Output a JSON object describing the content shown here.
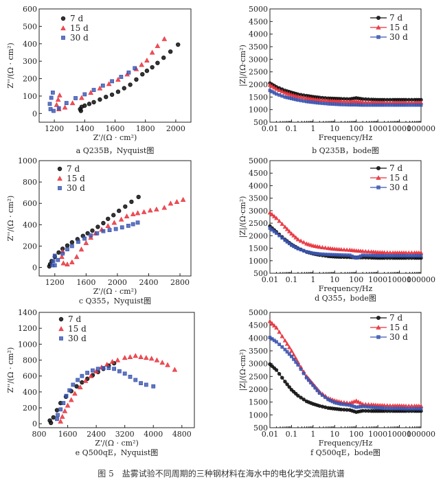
{
  "figure_caption": "图 5　盐雾试验不同周期的三种钢材料在海水中的电化学交流阻抗谱",
  "colors": {
    "7 d": "#111111",
    "15 d": "#e8323c",
    "30 d": "#3a55b0"
  },
  "markers": {
    "7 d": "circle",
    "15 d": "triangle",
    "30 d": "square"
  },
  "chart_data": [
    {
      "type": "scatter",
      "caption": "a Q235B，Nyquist图",
      "xlabel": "Z'/(Ω · cm²)",
      "ylabel": "Z''/(Ω · cm²)",
      "xscale": "linear",
      "xlim": [
        1100,
        2100
      ],
      "ylim": [
        -50,
        600
      ],
      "xticks": [
        "1200",
        "1400",
        "1600",
        "1800",
        "2000"
      ],
      "yticks": [
        "0",
        "100",
        "200",
        "300",
        "400",
        "500",
        "600"
      ],
      "legend": "top-left",
      "grid": false,
      "series": [
        {
          "name": "7 d",
          "x": [
            1375,
            1370,
            1380,
            1400,
            1430,
            1460,
            1500,
            1540,
            1580,
            1620,
            1660,
            1700,
            1740,
            1780,
            1810,
            1845,
            1880,
            1920,
            1965,
            2015
          ],
          "y": [
            15,
            25,
            38,
            45,
            55,
            65,
            80,
            95,
            108,
            125,
            145,
            165,
            195,
            225,
            245,
            265,
            290,
            320,
            355,
            395
          ]
        },
        {
          "name": "15 d",
          "x": [
            1235,
            1225,
            1215,
            1230,
            1270,
            1320,
            1380,
            1440,
            1500,
            1560,
            1620,
            1680,
            1740,
            1775,
            1810,
            1845,
            1880,
            1925
          ],
          "y": [
            105,
            80,
            50,
            25,
            35,
            60,
            90,
            120,
            145,
            170,
            195,
            225,
            255,
            280,
            305,
            350,
            388,
            428
          ]
        },
        {
          "name": "30 d",
          "x": [
            1190,
            1180,
            1170,
            1175,
            1195,
            1230,
            1280,
            1340,
            1400,
            1460,
            1520,
            1580,
            1640,
            1690,
            1730
          ],
          "y": [
            120,
            90,
            55,
            25,
            15,
            30,
            60,
            88,
            110,
            135,
            160,
            185,
            210,
            235,
            260
          ]
        }
      ]
    },
    {
      "type": "line",
      "caption": "b Q235B，bode图",
      "xlabel": "Frequency/Hz",
      "ylabel": "|Z|/(Ω·cm²)",
      "xscale": "log",
      "xlim": [
        0.01,
        100000
      ],
      "ylim": [
        500,
        5000
      ],
      "xticks": [
        "0.01",
        "0.1",
        "1",
        "10",
        "100",
        "1000",
        "10000",
        "100000"
      ],
      "yticks": [
        "500",
        "1000",
        "1500",
        "2000",
        "2500",
        "3000",
        "3500",
        "4000",
        "4500",
        "5000"
      ],
      "legend": "top-right",
      "grid": false,
      "x": [
        0.01,
        0.02,
        0.05,
        0.1,
        0.2,
        0.5,
        1,
        2,
        5,
        10,
        20,
        50,
        100,
        200,
        500,
        1000,
        2000,
        5000,
        10000,
        20000,
        50000,
        100000
      ],
      "series": [
        {
          "name": "7 d",
          "y": [
            2050,
            1900,
            1760,
            1680,
            1610,
            1550,
            1510,
            1480,
            1450,
            1440,
            1430,
            1420,
            1460,
            1420,
            1400,
            1390,
            1390,
            1390,
            1390,
            1390,
            1390,
            1390
          ]
        },
        {
          "name": "15 d",
          "y": [
            1980,
            1820,
            1670,
            1590,
            1520,
            1460,
            1420,
            1390,
            1360,
            1340,
            1330,
            1320,
            1330,
            1300,
            1290,
            1280,
            1280,
            1280,
            1280,
            1280,
            1280,
            1280
          ]
        },
        {
          "name": "30 d",
          "y": [
            1760,
            1620,
            1500,
            1440,
            1380,
            1320,
            1290,
            1260,
            1230,
            1215,
            1200,
            1190,
            1190,
            1180,
            1180,
            1180,
            1180,
            1180,
            1180,
            1180,
            1180,
            1180
          ]
        }
      ]
    },
    {
      "type": "scatter",
      "caption": "c Q355，Nyquist图",
      "xlabel": "Z'/(Ω · cm²)",
      "ylabel": "Z''/(Ω · cm²)",
      "xscale": "linear",
      "xlim": [
        1000,
        2940
      ],
      "ylim": [
        -80,
        1000
      ],
      "xticks": [
        "1200",
        "1600",
        "2000",
        "2400",
        "2800"
      ],
      "yticks": [
        "0",
        "200",
        "400",
        "600",
        "800",
        "1000"
      ],
      "legend": "top-left",
      "grid": false,
      "series": [
        {
          "name": "7 d",
          "x": [
            1130,
            1140,
            1160,
            1200,
            1250,
            1300,
            1360,
            1420,
            1490,
            1560,
            1620,
            1680,
            1750,
            1820,
            1880,
            1950,
            2020,
            2100,
            2180,
            2270
          ],
          "y": [
            10,
            30,
            60,
            100,
            140,
            175,
            205,
            235,
            265,
            295,
            320,
            345,
            380,
            415,
            455,
            490,
            530,
            570,
            615,
            660
          ]
        },
        {
          "name": "15 d",
          "x": [
            1300,
            1290,
            1310,
            1360,
            1420,
            1480,
            1540,
            1600,
            1660,
            1720,
            1800,
            1880,
            1960,
            2050,
            2120,
            2200,
            2260,
            2340,
            2420,
            2500,
            2600,
            2680,
            2760,
            2840
          ],
          "y": [
            150,
            100,
            40,
            30,
            50,
            100,
            170,
            230,
            280,
            320,
            355,
            390,
            420,
            450,
            480,
            500,
            510,
            520,
            535,
            545,
            560,
            600,
            615,
            635
          ]
        },
        {
          "name": "30 d",
          "x": [
            1200,
            1180,
            1170,
            1200,
            1240,
            1300,
            1360,
            1420,
            1500,
            1580,
            1660,
            1740,
            1820,
            1900,
            1980,
            2060,
            2140,
            2200,
            2260
          ],
          "y": [
            110,
            60,
            20,
            20,
            70,
            130,
            170,
            200,
            240,
            270,
            300,
            320,
            340,
            350,
            360,
            375,
            390,
            405,
            420
          ]
        }
      ]
    },
    {
      "type": "line",
      "caption": "d Q355，bode图",
      "xlabel": "Frequency/Hz",
      "ylabel": "|Z|/(Ω·cm²)",
      "xscale": "log",
      "xlim": [
        0.01,
        100000
      ],
      "ylim": [
        500,
        5000
      ],
      "xticks": [
        "0.01",
        "0.1",
        "1",
        "10",
        "100",
        "1000",
        "10000",
        "100000"
      ],
      "yticks": [
        "500",
        "1000",
        "1500",
        "2000",
        "2500",
        "3000",
        "3500",
        "4000",
        "4500",
        "5000"
      ],
      "legend": "top-right",
      "grid": false,
      "x": [
        0.01,
        0.02,
        0.05,
        0.1,
        0.2,
        0.5,
        1,
        2,
        5,
        10,
        20,
        50,
        100,
        200,
        500,
        1000,
        2000,
        5000,
        10000,
        20000,
        50000,
        100000
      ],
      "series": [
        {
          "name": "7 d",
          "y": [
            2380,
            2150,
            1850,
            1650,
            1500,
            1350,
            1280,
            1230,
            1180,
            1160,
            1150,
            1140,
            1130,
            1130,
            1120,
            1110,
            1110,
            1110,
            1110,
            1110,
            1110,
            1110
          ]
        },
        {
          "name": "15 d",
          "y": [
            2920,
            2700,
            2350,
            2080,
            1850,
            1680,
            1600,
            1550,
            1500,
            1470,
            1450,
            1430,
            1400,
            1380,
            1360,
            1340,
            1330,
            1320,
            1320,
            1320,
            1320,
            1320
          ]
        },
        {
          "name": "30 d",
          "y": [
            2300,
            2100,
            1820,
            1620,
            1480,
            1360,
            1300,
            1270,
            1250,
            1240,
            1230,
            1220,
            1110,
            1220,
            1210,
            1200,
            1200,
            1200,
            1200,
            1200,
            1200,
            1200
          ]
        }
      ]
    },
    {
      "type": "scatter",
      "caption": "e Q500qE，Nyquist图",
      "xlabel": "Z'/(Ω · cm²)",
      "ylabel": "Z''/(Ω · cm²)",
      "xscale": "linear",
      "xlim": [
        800,
        5150
      ],
      "ylim": [
        -50,
        1400
      ],
      "xticks": [
        "800",
        "1600",
        "2400",
        "3200",
        "4000",
        "4800"
      ],
      "yticks": [
        "0",
        "200",
        "400",
        "600",
        "800",
        "1000",
        "1200",
        "1400"
      ],
      "legend": "top-left",
      "grid": false,
      "series": [
        {
          "name": "7 d",
          "x": [
            1100,
            1130,
            1200,
            1300,
            1400,
            1550,
            1700,
            1850,
            2000,
            2150,
            2300,
            2450,
            2600,
            2750,
            2900
          ],
          "y": [
            40,
            10,
            80,
            170,
            260,
            340,
            410,
            470,
            520,
            565,
            610,
            650,
            690,
            730,
            760
          ]
        },
        {
          "name": "15 d",
          "x": [
            1400,
            1450,
            1520,
            1600,
            1700,
            1800,
            1950,
            2100,
            2250,
            2400,
            2550,
            2700,
            2850,
            3000,
            3200,
            3350,
            3500,
            3650,
            3800,
            3950,
            4100,
            4250,
            4400,
            4600
          ],
          "y": [
            30,
            90,
            160,
            230,
            300,
            380,
            460,
            540,
            600,
            660,
            710,
            745,
            780,
            800,
            830,
            840,
            855,
            840,
            830,
            820,
            800,
            770,
            740,
            680
          ]
        },
        {
          "name": "30 d",
          "x": [
            1300,
            1320,
            1400,
            1480,
            1560,
            1650,
            1750,
            1880,
            2000,
            2150,
            2300,
            2450,
            2600,
            2750,
            2900,
            3050,
            3200,
            3350,
            3500,
            3650,
            3800,
            4000
          ],
          "y": [
            60,
            110,
            180,
            260,
            350,
            420,
            490,
            550,
            600,
            640,
            670,
            690,
            700,
            700,
            690,
            660,
            630,
            590,
            550,
            510,
            490,
            470
          ]
        }
      ]
    },
    {
      "type": "line",
      "caption": "f Q500qE，bode图",
      "xlabel": "Frequency/Hz",
      "ylabel": "|Z|/(Ω·cm²)",
      "xscale": "log",
      "xlim": [
        0.01,
        100000
      ],
      "ylim": [
        500,
        5000
      ],
      "xticks": [
        "0.01",
        "0.1",
        "1",
        "10",
        "100",
        "1000",
        "10000",
        "100000"
      ],
      "yticks": [
        "500",
        "1000",
        "1500",
        "2000",
        "2500",
        "3000",
        "3500",
        "4000",
        "4500",
        "5000"
      ],
      "legend": "top-right",
      "grid": false,
      "x": [
        0.01,
        0.02,
        0.05,
        0.1,
        0.2,
        0.5,
        1,
        2,
        5,
        10,
        20,
        50,
        100,
        200,
        500,
        1000,
        2000,
        5000,
        10000,
        20000,
        50000,
        100000
      ],
      "series": [
        {
          "name": "7 d",
          "y": [
            2980,
            2750,
            2300,
            1980,
            1750,
            1530,
            1430,
            1350,
            1270,
            1240,
            1210,
            1190,
            1110,
            1160,
            1150,
            1150,
            1150,
            1150,
            1150,
            1150,
            1150,
            1150
          ]
        },
        {
          "name": "15 d",
          "y": [
            4650,
            4400,
            3900,
            3500,
            3050,
            2500,
            2200,
            1900,
            1650,
            1560,
            1500,
            1460,
            1550,
            1420,
            1400,
            1380,
            1370,
            1360,
            1360,
            1350,
            1350,
            1350
          ]
        },
        {
          "name": "30 d",
          "y": [
            4020,
            3850,
            3550,
            3280,
            2950,
            2450,
            2150,
            1850,
            1600,
            1480,
            1420,
            1380,
            1300,
            1330,
            1300,
            1280,
            1260,
            1250,
            1250,
            1240,
            1240,
            1240
          ]
        }
      ]
    }
  ]
}
